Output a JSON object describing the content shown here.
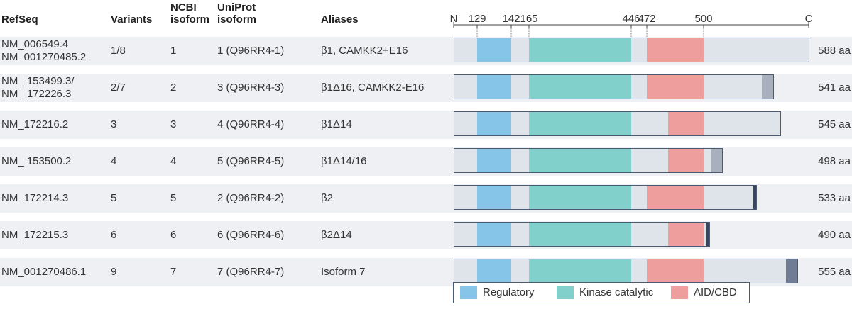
{
  "headers": {
    "refseq": "RefSeq",
    "variants": "Variants",
    "ncbi_line1": "NCBI",
    "ncbi_line2": "isoform",
    "uniprot_line1": "UniProt",
    "uniprot_line2": "isoform",
    "aliases": "Aliases"
  },
  "axis": {
    "n_label": "N",
    "c_label": "C",
    "ticks": [
      "129",
      "142",
      "165",
      "446",
      "472",
      "500"
    ]
  },
  "rows": [
    {
      "refseq": [
        "NM_006549.4",
        "NM_001270485.2"
      ],
      "variants": "1/8",
      "ncbi": "1",
      "uniprot": "1 (Q96RR4-1)",
      "alias": "β1, CAMKK2+E16",
      "length": "588 aa"
    },
    {
      "refseq": [
        "NM_ 153499.3/",
        "NM_ 172226.3"
      ],
      "variants": "2/7",
      "ncbi": "2",
      "uniprot": "3 (Q96RR4-3)",
      "alias": "β1Δ16, CAMKK2-E16",
      "length": "541 aa"
    },
    {
      "refseq": [
        "NM_172216.2"
      ],
      "variants": "3",
      "ncbi": "3",
      "uniprot": "4 (Q96RR4-4)",
      "alias": "β1Δ14",
      "length": "545 aa"
    },
    {
      "refseq": [
        "NM_ 153500.2"
      ],
      "variants": "4",
      "ncbi": "4",
      "uniprot": "5 (Q96RR4-5)",
      "alias": "β1Δ14/16",
      "length": "498 aa"
    },
    {
      "refseq": [
        "NM_172214.3"
      ],
      "variants": "5",
      "ncbi": "5",
      "uniprot": "2 (Q96RR4-2)",
      "alias": "β2",
      "length": "533 aa"
    },
    {
      "refseq": [
        "NM_172215.3"
      ],
      "variants": "6",
      "ncbi": "6",
      "uniprot": "6 (Q96RR4-6)",
      "alias": "β2Δ14",
      "length": "490 aa"
    },
    {
      "refseq": [
        "NM_001270486.1"
      ],
      "variants": "9",
      "ncbi": "7",
      "uniprot": "7 (Q96RR4-7)",
      "alias": "Isoform 7",
      "length": "555 aa"
    }
  ],
  "legend": [
    {
      "label": "Regulatory",
      "color": "#86c5e8"
    },
    {
      "label": "Kinase catalytic",
      "color": "#82d0cb"
    },
    {
      "label": "AID/CBD",
      "color": "#ef9e9e"
    }
  ],
  "colors": {
    "background_bar": "#dfe3ea",
    "regulatory": "#86c5e8",
    "kinase": "#82d0cb",
    "aid_cbd": "#ef9e9e",
    "tail_light": "#a8b0be",
    "tail_dark": "#344662",
    "tail_mid": "#6f7c93",
    "outline": "#4a5a72",
    "row_stripe": "#eef0f3"
  }
}
